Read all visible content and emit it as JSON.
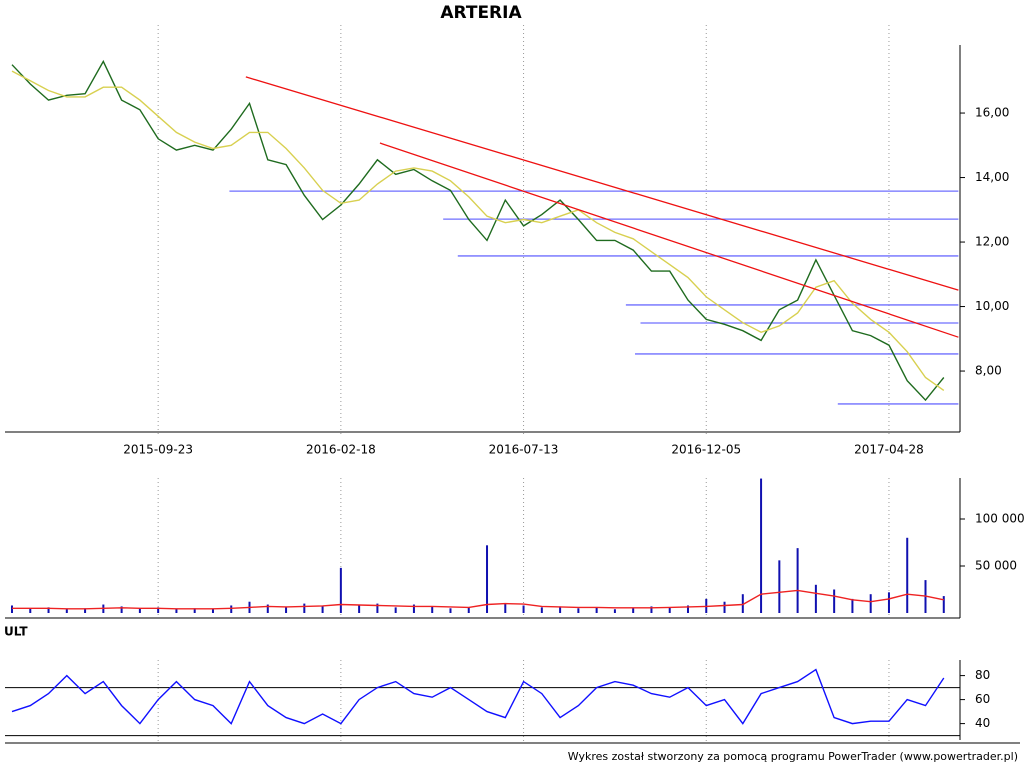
{
  "chart_data": [
    {
      "type": "line",
      "title": "ARTERIA",
      "categories": [
        null,
        null,
        null,
        null,
        null,
        null,
        null,
        null,
        "2015-09-23",
        null,
        null,
        null,
        null,
        null,
        null,
        null,
        null,
        null,
        "2016-02-18",
        null,
        null,
        null,
        null,
        null,
        null,
        null,
        null,
        null,
        "2016-07-13",
        null,
        null,
        null,
        null,
        null,
        null,
        null,
        null,
        null,
        "2016-12-05",
        null,
        null,
        null,
        null,
        null,
        null,
        null,
        null,
        null,
        "2017-04-28",
        null,
        null,
        null
      ],
      "series": [
        {
          "color": "#1f6b1f",
          "values": [
            17.5,
            16.9,
            16.4,
            16.55,
            16.6,
            17.6,
            16.4,
            16.1,
            15.2,
            14.85,
            15.0,
            14.85,
            15.5,
            16.3,
            14.55,
            14.4,
            13.45,
            12.7,
            13.15,
            13.8,
            14.55,
            14.1,
            14.25,
            13.9,
            13.6,
            12.7,
            12.05,
            13.3,
            12.5,
            12.85,
            13.3,
            12.7,
            12.05,
            12.05,
            11.75,
            11.1,
            11.1,
            10.2,
            9.6,
            9.45,
            9.25,
            8.95,
            9.9,
            10.2,
            11.45,
            10.35,
            9.25,
            9.1,
            8.8,
            7.7,
            7.1,
            7.8
          ]
        },
        {
          "color": "#d8d050",
          "values": [
            17.3,
            17.0,
            16.7,
            16.5,
            16.5,
            16.8,
            16.8,
            16.4,
            15.9,
            15.4,
            15.1,
            14.9,
            15.0,
            15.4,
            15.4,
            14.9,
            14.3,
            13.6,
            13.2,
            13.3,
            13.8,
            14.2,
            14.3,
            14.2,
            13.9,
            13.4,
            12.8,
            12.6,
            12.7,
            12.6,
            12.8,
            13.0,
            12.6,
            12.3,
            12.1,
            11.7,
            11.3,
            10.9,
            10.3,
            9.9,
            9.5,
            9.2,
            9.4,
            9.8,
            10.6,
            10.8,
            10.1,
            9.6,
            9.2,
            8.6,
            7.8,
            7.4
          ]
        }
      ],
      "trend_lines": [
        {
          "color": "#ee1111",
          "x": [
            12.8,
            51.8
          ],
          "y": [
            17.12,
            10.51
          ]
        },
        {
          "color": "#ee1111",
          "x": [
            20.14,
            51.8
          ],
          "y": [
            15.07,
            9.05
          ]
        }
      ],
      "levels": [
        {
          "color": "#6f6fff",
          "x": [
            11.9,
            51.8
          ],
          "y": 13.58
        },
        {
          "color": "#6f6fff",
          "x": [
            23.6,
            51.8
          ],
          "y": 12.71
        },
        {
          "color": "#6f6fff",
          "x": [
            24.4,
            51.8
          ],
          "y": 11.57
        },
        {
          "color": "#6f6fff",
          "x": [
            33.6,
            51.8
          ],
          "y": 10.05
        },
        {
          "color": "#6f6fff",
          "x": [
            34.4,
            51.8
          ],
          "y": 9.49
        },
        {
          "color": "#6f6fff",
          "x": [
            34.1,
            51.8
          ],
          "y": 8.53
        },
        {
          "color": "#6f6fff",
          "x": [
            45.2,
            51.8
          ],
          "y": 6.98
        }
      ],
      "ylim": [
        6.11,
        18.11
      ],
      "yticks": [
        {
          "value": 8,
          "label": "8,00"
        },
        {
          "value": 10,
          "label": "10,00"
        },
        {
          "value": 12,
          "label": "12,00"
        },
        {
          "value": 14,
          "label": "14,00"
        },
        {
          "value": 16,
          "label": "16,00"
        }
      ],
      "grid": true
    },
    {
      "type": "bar",
      "series": [
        {
          "type": "bar",
          "color": "#1010b0",
          "values": [
            8000,
            5000,
            6000,
            4000,
            5000,
            9000,
            7000,
            5000,
            6000,
            4000,
            5000,
            4000,
            8000,
            12000,
            9000,
            6000,
            10000,
            7000,
            48000,
            8000,
            10000,
            6000,
            9000,
            7000,
            5000,
            6000,
            72000,
            10000,
            8000,
            6000,
            7000,
            5000,
            6000,
            4000,
            5000,
            7000,
            6000,
            8000,
            15000,
            12000,
            20000,
            143000,
            56000,
            69000,
            30000,
            25000,
            15000,
            20000,
            22000,
            80000,
            35000,
            18000
          ]
        },
        {
          "type": "line",
          "color": "#ee2222",
          "values": [
            5000,
            5000,
            5000,
            4500,
            4500,
            5000,
            5500,
            5000,
            5000,
            4500,
            4500,
            4500,
            5000,
            6000,
            7000,
            6500,
            7000,
            7500,
            9000,
            8500,
            8000,
            7500,
            7000,
            7000,
            6500,
            6000,
            9000,
            10000,
            9500,
            7000,
            6500,
            6000,
            6000,
            5500,
            5500,
            5500,
            6000,
            6500,
            7000,
            8000,
            9000,
            20000,
            22000,
            24000,
            21000,
            18000,
            14000,
            12000,
            15000,
            20000,
            18000,
            14000
          ]
        }
      ],
      "ylim": [
        0,
        143600
      ],
      "yticks": [
        {
          "value": 50000,
          "label": "50 000"
        },
        {
          "value": 100000,
          "label": "100 000"
        }
      ],
      "grid": true
    },
    {
      "type": "line",
      "title": "ULT",
      "series": [
        {
          "color": "#1010ff",
          "values": [
            50,
            55,
            65,
            80,
            65,
            75,
            55,
            40,
            60,
            75,
            60,
            55,
            40,
            75,
            55,
            45,
            40,
            48,
            40,
            60,
            70,
            75,
            65,
            62,
            70,
            60,
            50,
            45,
            75,
            65,
            45,
            55,
            70,
            75,
            72,
            65,
            62,
            70,
            55,
            60,
            40,
            65,
            70,
            75,
            85,
            45,
            40,
            42,
            42,
            60,
            55,
            78
          ]
        }
      ],
      "levels": [
        70,
        30
      ],
      "ylim": [
        28,
        93
      ],
      "yticks": [
        40,
        60,
        80
      ],
      "grid": true
    }
  ],
  "footer": "Wykres został stworzony za pomocą programu PowerTrader (www.powertrader.pl)"
}
